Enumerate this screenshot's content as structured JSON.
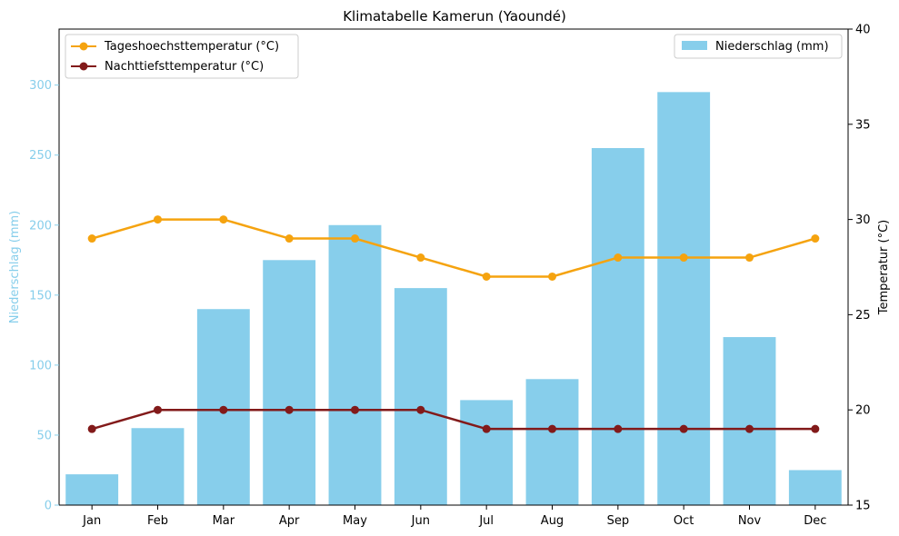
{
  "chart_data": {
    "type": "bar+line",
    "title": "Klimatabelle Kamerun (Yaoundé)",
    "categories": [
      "Jan",
      "Feb",
      "Mar",
      "Apr",
      "May",
      "Jun",
      "Jul",
      "Aug",
      "Sep",
      "Oct",
      "Nov",
      "Dec"
    ],
    "left_axis": {
      "label": "Niederschlag (mm)",
      "ylim": [
        0,
        340
      ],
      "ticks": [
        0,
        50,
        100,
        150,
        200,
        250,
        300
      ],
      "color": "#87ceeb"
    },
    "right_axis": {
      "label": "Temperatur (°C)",
      "ylim": [
        15,
        40
      ],
      "ticks": [
        15,
        20,
        25,
        30,
        35,
        40
      ]
    },
    "bars": {
      "name": "Niederschlag (mm)",
      "color": "#87ceeb",
      "values": [
        22,
        55,
        140,
        175,
        200,
        155,
        75,
        90,
        255,
        295,
        120,
        25
      ]
    },
    "lines": [
      {
        "name": "Tageshoechsttemperatur (°C)",
        "color": "#f5a30f",
        "values": [
          29,
          30,
          30,
          29,
          29,
          28,
          27,
          27,
          28,
          28,
          28,
          29
        ]
      },
      {
        "name": "Nachttiefsttemperatur (°C)",
        "color": "#821a1a",
        "values": [
          19,
          20,
          20,
          20,
          20,
          20,
          19,
          19,
          19,
          19,
          19,
          19
        ]
      }
    ],
    "legends": {
      "lines_position": "top-left",
      "bars_position": "top-right"
    },
    "grid": false
  }
}
